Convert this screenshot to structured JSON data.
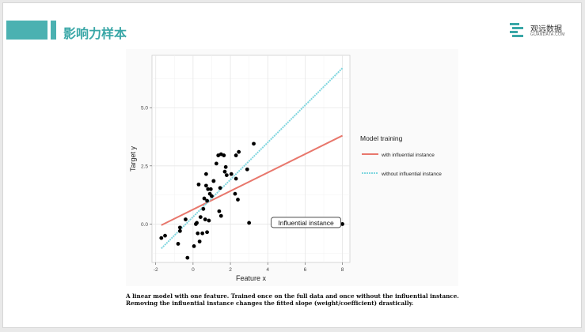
{
  "header": {
    "title": "影响力样本"
  },
  "logo": {
    "name": "观远数据",
    "sub": "GUANDATA.COM"
  },
  "chart_data": {
    "type": "scatter",
    "xlabel": "Feature x",
    "ylabel": "Target y",
    "xlim": [
      -2.2,
      8.4
    ],
    "ylim": [
      -1.65,
      7.25
    ],
    "x_ticks": [
      -2,
      0,
      2,
      4,
      6,
      8
    ],
    "y_ticks": [
      0.0,
      2.5,
      5.0
    ],
    "y_tick_labels": [
      "0.0",
      "2.5",
      "5.0"
    ],
    "grid": true,
    "points": [
      [
        -1.7,
        -0.6
      ],
      [
        -1.5,
        -0.5
      ],
      [
        -0.8,
        -0.85
      ],
      [
        -0.7,
        -0.3
      ],
      [
        -0.7,
        -0.15
      ],
      [
        -0.4,
        0.2
      ],
      [
        -0.3,
        -1.45
      ],
      [
        0.05,
        -0.95
      ],
      [
        0.15,
        0.0
      ],
      [
        0.2,
        0.05
      ],
      [
        0.25,
        -0.4
      ],
      [
        0.3,
        1.7
      ],
      [
        0.35,
        -0.75
      ],
      [
        0.4,
        0.3
      ],
      [
        0.5,
        -0.4
      ],
      [
        0.55,
        0.65
      ],
      [
        0.6,
        1.1
      ],
      [
        0.65,
        0.2
      ],
      [
        0.7,
        1.65
      ],
      [
        0.7,
        2.15
      ],
      [
        0.75,
        1.0
      ],
      [
        0.75,
        -0.35
      ],
      [
        0.8,
        1.5
      ],
      [
        0.85,
        0.15
      ],
      [
        0.9,
        1.3
      ],
      [
        0.95,
        1.5
      ],
      [
        1.0,
        1.2
      ],
      [
        1.1,
        1.85
      ],
      [
        1.1,
        1.85
      ],
      [
        1.25,
        2.6
      ],
      [
        1.35,
        2.95
      ],
      [
        1.4,
        0.55
      ],
      [
        1.45,
        1.55
      ],
      [
        1.5,
        0.35
      ],
      [
        1.5,
        3.0
      ],
      [
        1.65,
        2.95
      ],
      [
        1.7,
        2.25
      ],
      [
        1.75,
        2.45
      ],
      [
        1.8,
        2.1
      ],
      [
        2.05,
        2.15
      ],
      [
        2.25,
        1.3
      ],
      [
        2.3,
        2.95
      ],
      [
        2.3,
        1.95
      ],
      [
        2.4,
        1.05
      ],
      [
        2.45,
        3.1
      ],
      [
        2.9,
        2.35
      ],
      [
        3.0,
        0.05
      ],
      [
        3.25,
        3.45
      ],
      [
        8.0,
        0.0
      ]
    ],
    "series": [
      {
        "name": "with influential instance",
        "color": "#e8776c",
        "x": [
          -1.7,
          8.0
        ],
        "y": [
          -0.05,
          3.8
        ]
      },
      {
        "name": "without influential instance",
        "color": "#7fd6df",
        "x": [
          -1.7,
          8.0
        ],
        "y": [
          -1.05,
          6.7
        ]
      }
    ],
    "legend": {
      "title": "Model training",
      "position": "right"
    },
    "annotation": {
      "text": "Influential instance",
      "x": 6.05,
      "y": 0.05
    }
  },
  "caption": "A linear model with one feature. Trained once on the full data and once without the influential instance. Removing the influential instance changes the fitted slope (weight/coefficient) drastically."
}
